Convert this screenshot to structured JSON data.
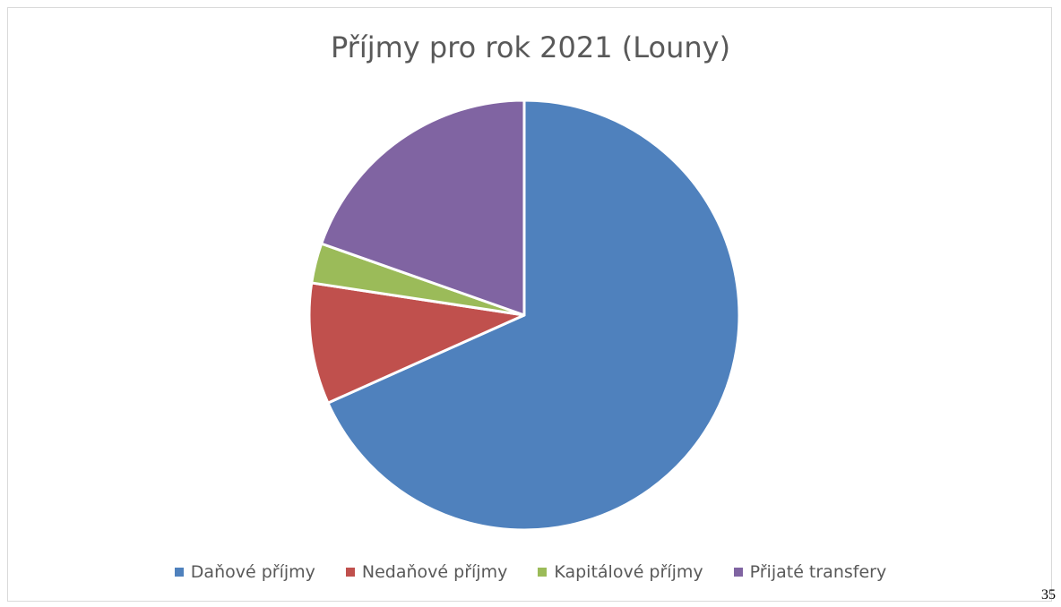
{
  "chart_data": {
    "type": "pie",
    "title": "Příjmy pro rok 2021 (Louny)",
    "categories": [
      "Daňové příjmy",
      "Nedaňové příjmy",
      "Kapitálové příjmy",
      "Přijaté transfery"
    ],
    "values": [
      68.3,
      9.1,
      3.0,
      19.6
    ],
    "unit": "%",
    "colors": [
      "#4f81bd",
      "#c0504d",
      "#9bbb59",
      "#8064a2"
    ],
    "start_angle_deg": 0,
    "direction": "clockwise",
    "legend_position": "bottom"
  },
  "page_number": "35"
}
